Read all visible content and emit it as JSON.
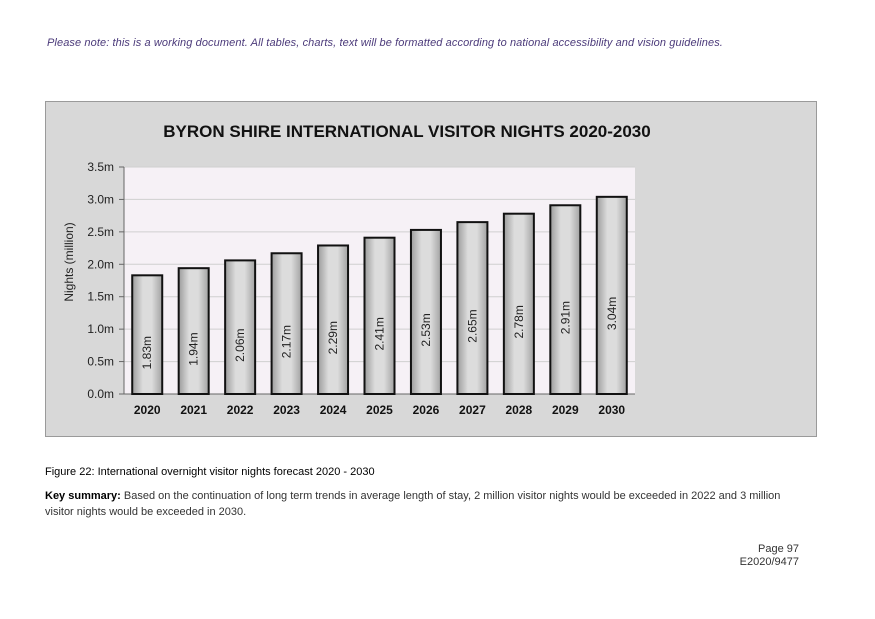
{
  "page": {
    "note": "Please note: this is a working document. All tables, charts, text will be formatted according to national accessibility and vision guidelines.",
    "figure_caption": "Figure 22: International overnight visitor nights forecast 2020 - 2030",
    "summary_label": "Key summary:",
    "summary_text": " Based on the continuation of long term trends in average length of stay, 2 million visitor nights would be exceeded in 2022 and 3 million visitor nights would be exceeded in 2030.",
    "page_number": "Page 97",
    "doc_ref": "E2020/9477"
  },
  "chart_data": {
    "type": "bar",
    "title": "BYRON SHIRE INTERNATIONAL VISITOR NIGHTS 2020-2030",
    "ylabel": "Nights (million)",
    "xlabel": "",
    "categories": [
      "2020",
      "2021",
      "2022",
      "2023",
      "2024",
      "2025",
      "2026",
      "2027",
      "2028",
      "2029",
      "2030"
    ],
    "values": [
      1.83,
      1.94,
      2.06,
      2.17,
      2.29,
      2.41,
      2.53,
      2.65,
      2.78,
      2.91,
      3.04
    ],
    "value_labels": [
      "1.83m",
      "1.94m",
      "2.06m",
      "2.17m",
      "2.29m",
      "2.41m",
      "2.53m",
      "2.65m",
      "2.78m",
      "2.91m",
      "3.04m"
    ],
    "ylim": [
      0,
      3.5
    ],
    "yticks": [
      0,
      0.5,
      1.0,
      1.5,
      2.0,
      2.5,
      3.0,
      3.5
    ],
    "ytick_labels": [
      "0.0m",
      "0.5m",
      "1.0m",
      "1.5m",
      "2.0m",
      "2.5m",
      "3.0m",
      "3.5m"
    ],
    "grid": true,
    "colors": {
      "bar_fill_light": "#dcdcdc",
      "bar_fill_dark": "#9c9c9c",
      "bar_stroke": "#111111",
      "plot_bg": "#f6f1f6",
      "frame_bg": "#d8d8d8",
      "grid": "#cfcfcf"
    }
  }
}
